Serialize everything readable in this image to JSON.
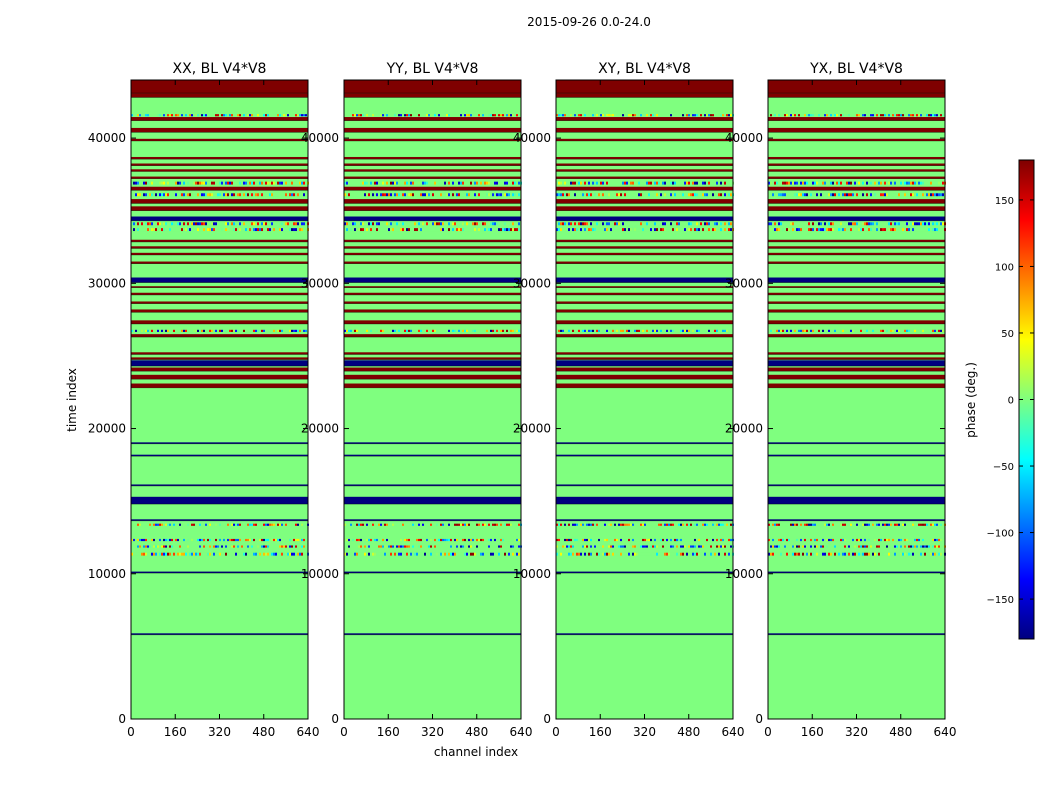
{
  "figure": {
    "suptitle": "2015-09-26 0.0-24.0",
    "xlabel": "channel index",
    "ylabel": "time index"
  },
  "colorbar": {
    "label": "phase (deg.)",
    "range": [
      -180,
      180
    ],
    "ticks": [
      -150,
      -100,
      -50,
      0,
      50,
      100,
      150
    ],
    "tick_labels": [
      "−150",
      "−100",
      "−50",
      "0",
      "50",
      "100",
      "150"
    ],
    "colormap": "jet",
    "colormap_stops": [
      "#00007f",
      "#0000ff",
      "#007fff",
      "#00ffff",
      "#7fff7f",
      "#ffff00",
      "#ff7f00",
      "#ff0000",
      "#7f0000"
    ]
  },
  "chart_data": {
    "type": "heatmap",
    "description_units": "phase in degrees; rows = time index ranges",
    "panels": [
      {
        "title": "XX, BL V4*V8"
      },
      {
        "title": "YY, BL V4*V8"
      },
      {
        "title": "XY, BL V4*V8"
      },
      {
        "title": "YX, BL V4*V8"
      }
    ],
    "xlim": [
      0,
      640
    ],
    "xticks": [
      0,
      160,
      320,
      480,
      640
    ],
    "ylim": [
      0,
      44000
    ],
    "yticks": [
      0,
      10000,
      20000,
      30000,
      40000
    ],
    "background_value": 0,
    "bands": [
      {
        "y0": 5800,
        "y1": 5900,
        "value": -180
      },
      {
        "y0": 10050,
        "y1": 10150,
        "value": -180
      },
      {
        "y0": 11250,
        "y1": 11450,
        "value": "noise"
      },
      {
        "y0": 11800,
        "y1": 11950,
        "value": "noise"
      },
      {
        "y0": 12250,
        "y1": 12400,
        "value": "noise"
      },
      {
        "y0": 13300,
        "y1": 13450,
        "value": "noise"
      },
      {
        "y0": 13650,
        "y1": 13750,
        "value": -180
      },
      {
        "y0": 14800,
        "y1": 15300,
        "value": -180
      },
      {
        "y0": 16050,
        "y1": 16150,
        "value": -180
      },
      {
        "y0": 18100,
        "y1": 18200,
        "value": -180
      },
      {
        "y0": 18950,
        "y1": 19050,
        "value": -180
      },
      {
        "y0": 22800,
        "y1": 23100,
        "value": 180
      },
      {
        "y0": 23400,
        "y1": 23700,
        "value": 180
      },
      {
        "y0": 23950,
        "y1": 24200,
        "value": 180
      },
      {
        "y0": 24300,
        "y1": 24700,
        "value": -180
      },
      {
        "y0": 24750,
        "y1": 24900,
        "value": 180
      },
      {
        "y0": 25100,
        "y1": 25250,
        "value": 180
      },
      {
        "y0": 26300,
        "y1": 26500,
        "value": 180
      },
      {
        "y0": 26650,
        "y1": 26800,
        "value": "noise"
      },
      {
        "y0": 27200,
        "y1": 27450,
        "value": 180
      },
      {
        "y0": 28000,
        "y1": 28200,
        "value": 180
      },
      {
        "y0": 28600,
        "y1": 28750,
        "value": 180
      },
      {
        "y0": 29200,
        "y1": 29350,
        "value": 180
      },
      {
        "y0": 29700,
        "y1": 29800,
        "value": 180
      },
      {
        "y0": 30050,
        "y1": 30400,
        "value": -180
      },
      {
        "y0": 31350,
        "y1": 31500,
        "value": 180
      },
      {
        "y0": 31950,
        "y1": 32100,
        "value": 180
      },
      {
        "y0": 32400,
        "y1": 32550,
        "value": 180
      },
      {
        "y0": 32850,
        "y1": 33000,
        "value": 180
      },
      {
        "y0": 33600,
        "y1": 33800,
        "value": "noise"
      },
      {
        "y0": 34000,
        "y1": 34200,
        "value": "noise"
      },
      {
        "y0": 34300,
        "y1": 34600,
        "value": -180
      },
      {
        "y0": 35000,
        "y1": 35300,
        "value": 180
      },
      {
        "y0": 35500,
        "y1": 35800,
        "value": 180
      },
      {
        "y0": 36000,
        "y1": 36200,
        "value": "noise"
      },
      {
        "y0": 36400,
        "y1": 36650,
        "value": 180
      },
      {
        "y0": 36800,
        "y1": 37000,
        "value": "noise"
      },
      {
        "y0": 37200,
        "y1": 37350,
        "value": 180
      },
      {
        "y0": 37700,
        "y1": 37850,
        "value": 180
      },
      {
        "y0": 38100,
        "y1": 38250,
        "value": 180
      },
      {
        "y0": 38550,
        "y1": 38700,
        "value": 180
      },
      {
        "y0": 39800,
        "y1": 39950,
        "value": 180
      },
      {
        "y0": 40400,
        "y1": 40700,
        "value": 180
      },
      {
        "y0": 41200,
        "y1": 41450,
        "value": 180
      },
      {
        "y0": 41500,
        "y1": 41650,
        "value": "noise"
      },
      {
        "y0": 42800,
        "y1": 43100,
        "value": 180
      },
      {
        "y0": 43100,
        "y1": 44000,
        "value": 180
      }
    ]
  }
}
